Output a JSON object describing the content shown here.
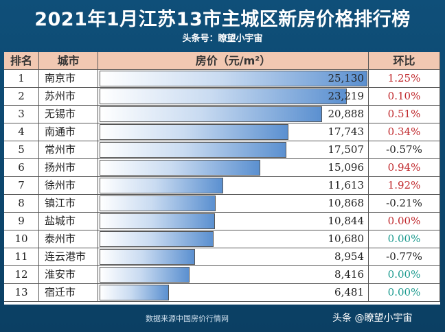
{
  "header": {
    "title": "2021年1月江苏13市主城区新房价格排行榜",
    "subtitle": "头条号：瞭望小宇宙"
  },
  "table": {
    "columns": [
      "排名",
      "城市",
      "房价（元/m²）",
      "环比"
    ]
  },
  "chart_data": {
    "type": "bar",
    "orientation": "horizontal",
    "xlim": [
      0,
      25130
    ],
    "series": [
      {
        "values": [
          25130,
          23219,
          20888,
          17743,
          17507,
          15096,
          11613,
          10868,
          10844,
          10680,
          8954,
          8416,
          6481
        ]
      }
    ],
    "rows": [
      {
        "rank": "1",
        "city": "南京市",
        "price": "25,130",
        "change": "1.25%",
        "trend": "pos"
      },
      {
        "rank": "2",
        "city": "苏州市",
        "price": "23,219",
        "change": "0.10%",
        "trend": "pos"
      },
      {
        "rank": "3",
        "city": "无锡市",
        "price": "20,888",
        "change": "0.51%",
        "trend": "pos"
      },
      {
        "rank": "4",
        "city": "南通市",
        "price": "17,743",
        "change": "0.34%",
        "trend": "pos"
      },
      {
        "rank": "5",
        "city": "常州市",
        "price": "17,507",
        "change": "-0.57%",
        "trend": "neg"
      },
      {
        "rank": "6",
        "city": "扬州市",
        "price": "15,096",
        "change": "0.94%",
        "trend": "pos"
      },
      {
        "rank": "7",
        "city": "徐州市",
        "price": "11,613",
        "change": "1.92%",
        "trend": "pos"
      },
      {
        "rank": "8",
        "city": "镇江市",
        "price": "10,868",
        "change": "-0.21%",
        "trend": "neg"
      },
      {
        "rank": "9",
        "city": "盐城市",
        "price": "10,844",
        "change": "0.00%",
        "trend": "pos"
      },
      {
        "rank": "10",
        "city": "泰州市",
        "price": "10,680",
        "change": "0.00%",
        "trend": "zero"
      },
      {
        "rank": "11",
        "city": "连云港市",
        "price": "8,954",
        "change": "-0.77%",
        "trend": "neg"
      },
      {
        "rank": "12",
        "city": "淮安市",
        "price": "8,416",
        "change": "0.00%",
        "trend": "zero"
      },
      {
        "rank": "13",
        "city": "宿迁市",
        "price": "6,481",
        "change": "0.00%",
        "trend": "zero"
      }
    ]
  },
  "footer": {
    "source": "数据来源中国房价行情网",
    "watermark": "头条 @瞭望小宇宙"
  }
}
